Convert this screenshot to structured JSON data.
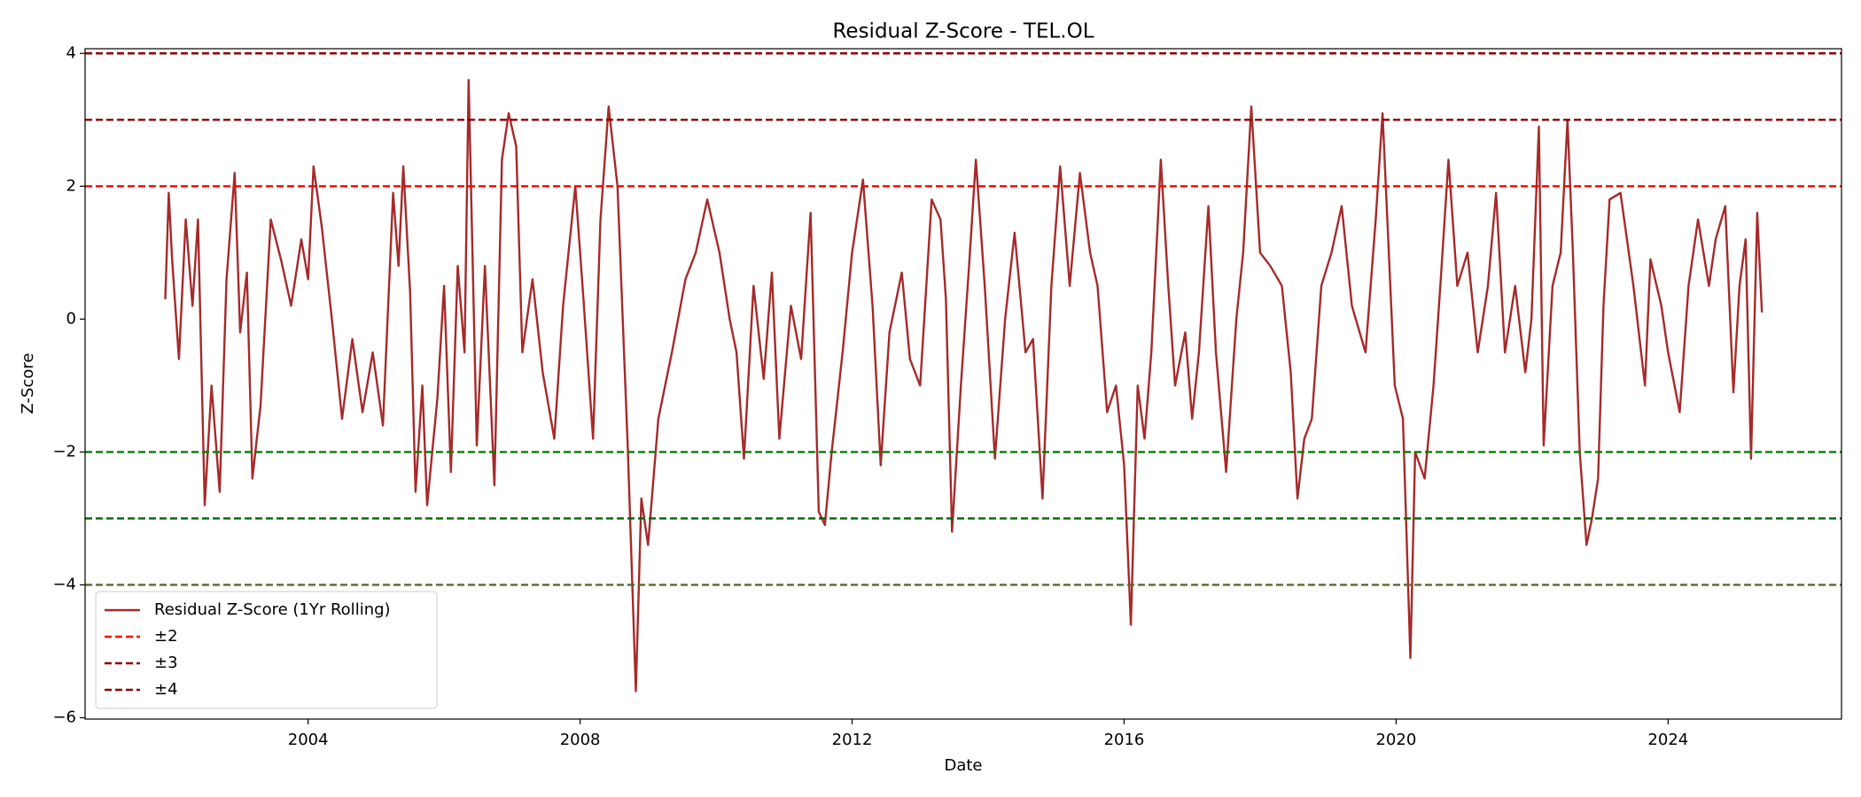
{
  "chart_data": {
    "type": "line",
    "title": "Residual Z-Score - TEL.OL",
    "xlabel": "Date",
    "ylabel": "Z-Score",
    "xlim": [
      2000.72,
      2026.55
    ],
    "ylim": [
      -6.02,
      4.07
    ],
    "xticks": [
      2004,
      2008,
      2012,
      2016,
      2020,
      2024
    ],
    "yticks": [
      {
        "value": -6,
        "label": "−6"
      },
      {
        "value": -4,
        "label": "−4"
      },
      {
        "value": -2,
        "label": "−2"
      },
      0,
      2,
      4
    ],
    "legend": "lower left",
    "x": [
      2001.9,
      2001.95,
      2002.0,
      2002.1,
      2002.2,
      2002.3,
      2002.38,
      2002.48,
      2002.58,
      2002.7,
      2002.8,
      2002.92,
      2003.0,
      2003.1,
      2003.18,
      2003.3,
      2003.45,
      2003.6,
      2003.75,
      2003.9,
      2004.0,
      2004.08,
      2004.2,
      2004.35,
      2004.5,
      2004.65,
      2004.8,
      2004.95,
      2005.1,
      2005.25,
      2005.33,
      2005.4,
      2005.5,
      2005.58,
      2005.68,
      2005.75,
      2005.9,
      2006.0,
      2006.1,
      2006.2,
      2006.3,
      2006.36,
      2006.48,
      2006.6,
      2006.74,
      2006.85,
      2006.95,
      2007.06,
      2007.15,
      2007.3,
      2007.45,
      2007.62,
      2007.75,
      2007.93,
      2008.05,
      2008.19,
      2008.3,
      2008.42,
      2008.55,
      2008.7,
      2008.82,
      2008.9,
      2009.0,
      2009.15,
      2009.35,
      2009.55,
      2009.7,
      2009.87,
      2010.05,
      2010.2,
      2010.3,
      2010.41,
      2010.55,
      2010.7,
      2010.82,
      2010.93,
      2011.1,
      2011.25,
      2011.39,
      2011.51,
      2011.6,
      2011.7,
      2011.86,
      2012.0,
      2012.16,
      2012.3,
      2012.42,
      2012.55,
      2012.73,
      2012.85,
      2013.0,
      2013.17,
      2013.3,
      2013.38,
      2013.47,
      2013.6,
      2013.72,
      2013.82,
      2013.95,
      2014.1,
      2014.25,
      2014.39,
      2014.55,
      2014.66,
      2014.8,
      2014.93,
      2015.06,
      2015.2,
      2015.35,
      2015.5,
      2015.61,
      2015.75,
      2015.88,
      2016.0,
      2016.1,
      2016.2,
      2016.3,
      2016.4,
      2016.54,
      2016.65,
      2016.75,
      2016.9,
      2017.0,
      2017.1,
      2017.24,
      2017.35,
      2017.5,
      2017.65,
      2017.75,
      2017.87,
      2018.0,
      2018.15,
      2018.32,
      2018.45,
      2018.55,
      2018.65,
      2018.76,
      2018.9,
      2019.05,
      2019.2,
      2019.35,
      2019.55,
      2019.7,
      2019.8,
      2019.98,
      2020.1,
      2020.21,
      2020.28,
      2020.42,
      2020.55,
      2020.65,
      2020.77,
      2020.9,
      2021.05,
      2021.2,
      2021.35,
      2021.47,
      2021.6,
      2021.75,
      2021.9,
      2021.99,
      2022.1,
      2022.17,
      2022.3,
      2022.42,
      2022.52,
      2022.6,
      2022.7,
      2022.8,
      2022.88,
      2022.97,
      2023.05,
      2023.14,
      2023.3,
      2023.49,
      2023.66,
      2023.74,
      2023.9,
      2024.0,
      2024.17,
      2024.3,
      2024.44,
      2024.6,
      2024.7,
      2024.84,
      2024.96,
      2025.05,
      2025.14,
      2025.22,
      2025.31,
      2025.38
    ],
    "series": [
      {
        "name": "Residual Z-Score (1Yr Rolling)",
        "color": "#a52a2a",
        "values": [
          0.3,
          1.9,
          0.9,
          -0.6,
          1.5,
          0.2,
          1.5,
          -2.8,
          -1.0,
          -2.6,
          0.6,
          2.2,
          -0.2,
          0.7,
          -2.4,
          -1.3,
          1.5,
          0.9,
          0.2,
          1.2,
          0.6,
          2.3,
          1.4,
          0.0,
          -1.5,
          -0.3,
          -1.4,
          -0.5,
          -1.6,
          1.9,
          0.8,
          2.3,
          0.4,
          -2.6,
          -1.0,
          -2.8,
          -1.2,
          0.5,
          -2.3,
          0.8,
          -0.5,
          3.6,
          -1.9,
          0.8,
          -2.5,
          2.4,
          3.1,
          2.6,
          -0.5,
          0.6,
          -0.8,
          -1.8,
          0.2,
          2.0,
          0.3,
          -1.8,
          1.5,
          3.2,
          2.0,
          -1.9,
          -5.6,
          -2.7,
          -3.4,
          -1.5,
          -0.5,
          0.6,
          1.0,
          1.8,
          1.0,
          0.0,
          -0.5,
          -2.1,
          0.5,
          -0.9,
          0.7,
          -1.8,
          0.2,
          -0.6,
          1.6,
          -2.9,
          -3.1,
          -2.0,
          -0.5,
          1.0,
          2.1,
          0.2,
          -2.2,
          -0.2,
          0.7,
          -0.6,
          -1.0,
          1.8,
          1.5,
          0.3,
          -3.2,
          -1.0,
          0.8,
          2.4,
          0.5,
          -2.1,
          0.0,
          1.3,
          -0.5,
          -0.3,
          -2.7,
          0.5,
          2.3,
          0.5,
          2.2,
          1.0,
          0.5,
          -1.4,
          -1.0,
          -2.2,
          -4.6,
          -1.0,
          -1.8,
          -0.5,
          2.4,
          0.5,
          -1.0,
          -0.2,
          -1.5,
          -0.5,
          1.7,
          -0.5,
          -2.3,
          0.0,
          1.0,
          3.2,
          1.0,
          0.8,
          0.5,
          -0.8,
          -2.7,
          -1.8,
          -1.5,
          0.5,
          1.0,
          1.7,
          0.2,
          -0.5,
          1.5,
          3.1,
          -1.0,
          -1.5,
          -5.1,
          -2.0,
          -2.4,
          -1.0,
          0.5,
          2.4,
          0.5,
          1.0,
          -0.5,
          0.5,
          1.9,
          -0.5,
          0.5,
          -0.8,
          0.0,
          2.9,
          -1.9,
          0.5,
          1.0,
          3.0,
          1.0,
          -2.0,
          -3.4,
          -3.0,
          -2.4,
          0.2,
          1.8,
          1.9,
          0.5,
          -1.0,
          0.9,
          0.2,
          -0.5,
          -1.4,
          0.5,
          1.5,
          0.5,
          1.2,
          1.7,
          -1.1,
          0.5,
          1.2,
          -2.1,
          1.6,
          0.1
        ]
      }
    ],
    "thresholds": [
      {
        "name": "±2",
        "value": 2,
        "color": "#ff0000",
        "lower_color": "#008000"
      },
      {
        "name": "±3",
        "value": 3,
        "color": "#8b0000",
        "lower_color": "#006400"
      },
      {
        "name": "±4",
        "value": 4,
        "color": "#8b0000",
        "lower_color": "#556b2f"
      }
    ]
  }
}
